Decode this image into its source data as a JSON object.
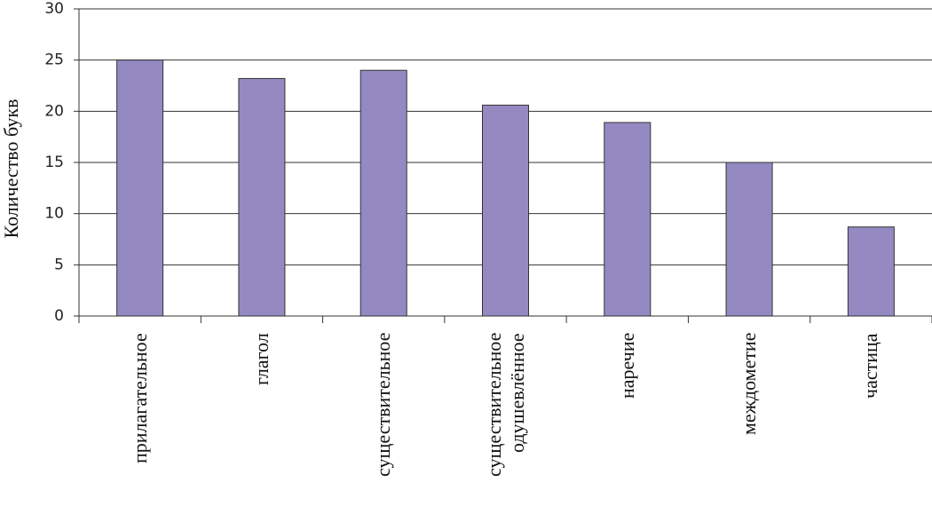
{
  "chart_data": {
    "type": "bar",
    "y_label": "Количество букв",
    "categories": [
      "прилагательное",
      "глагол",
      "существительное",
      "существительное одушевлённое",
      "наречие",
      "междометие",
      "частица"
    ],
    "values": [
      25,
      23.2,
      24,
      20.6,
      18.9,
      15,
      8.7
    ],
    "color": "#9589c2",
    "ylim": [
      0,
      30
    ],
    "yticks": [
      0,
      5,
      10,
      15,
      20,
      25,
      30
    ],
    "grid": true
  }
}
